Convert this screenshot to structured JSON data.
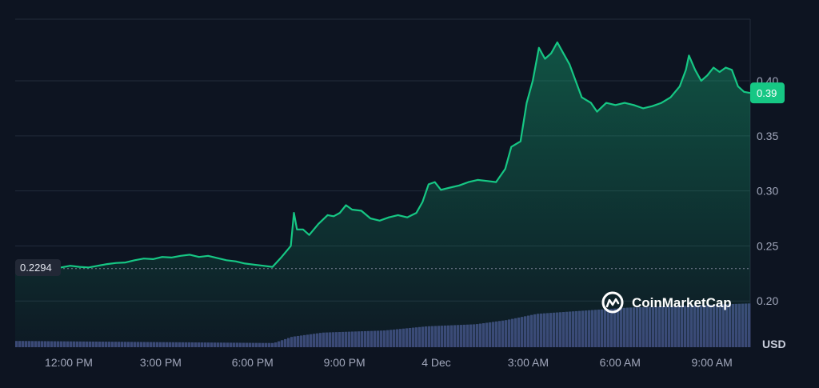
{
  "brand": {
    "watermark": "CoinMarketCap",
    "logo_icon": "coinmarketcap-logo-icon"
  },
  "colors": {
    "background": "#0d1421",
    "line": "#16c784",
    "badge": "#16c784",
    "volume": "#3c4576",
    "grid": "#222b3b"
  },
  "chart_data": {
    "type": "area",
    "unit_label": "USD",
    "y_ticks": [
      0.2,
      0.25,
      0.3,
      0.35,
      0.4
    ],
    "y_tick_labels": [
      "0.20",
      "0.25",
      "0.30",
      "0.35",
      "0.40"
    ],
    "ylim": [
      0.158,
      0.456
    ],
    "x_ticks": [
      {
        "t": 1.75,
        "label": "12:00 PM"
      },
      {
        "t": 4.75,
        "label": "3:00 PM"
      },
      {
        "t": 7.75,
        "label": "6:00 PM"
      },
      {
        "t": 10.75,
        "label": "9:00 PM"
      },
      {
        "t": 13.75,
        "label": "4 Dec"
      },
      {
        "t": 16.75,
        "label": "3:00 AM"
      },
      {
        "t": 19.75,
        "label": "6:00 AM"
      },
      {
        "t": 22.75,
        "label": "9:00 AM"
      }
    ],
    "xlim": [
      0,
      24
    ],
    "start_value": 0.2294,
    "start_label": "0.2294",
    "current_value": 0.389,
    "current_label": "0.39",
    "grid": true,
    "series": [
      {
        "values": [
          [
            0.0,
            0.229
          ],
          [
            0.3,
            0.2294
          ],
          [
            0.6,
            0.23
          ],
          [
            0.9,
            0.23
          ],
          [
            1.2,
            0.231
          ],
          [
            1.5,
            0.2305
          ],
          [
            1.8,
            0.232
          ],
          [
            2.1,
            0.231
          ],
          [
            2.4,
            0.2305
          ],
          [
            2.7,
            0.232
          ],
          [
            3.0,
            0.2335
          ],
          [
            3.3,
            0.2345
          ],
          [
            3.6,
            0.235
          ],
          [
            3.9,
            0.237
          ],
          [
            4.2,
            0.2385
          ],
          [
            4.5,
            0.238
          ],
          [
            4.8,
            0.24
          ],
          [
            5.1,
            0.2395
          ],
          [
            5.4,
            0.241
          ],
          [
            5.7,
            0.242
          ],
          [
            6.0,
            0.24
          ],
          [
            6.3,
            0.241
          ],
          [
            6.6,
            0.239
          ],
          [
            6.9,
            0.237
          ],
          [
            7.2,
            0.236
          ],
          [
            7.5,
            0.234
          ],
          [
            7.8,
            0.233
          ],
          [
            8.1,
            0.232
          ],
          [
            8.4,
            0.231
          ],
          [
            8.7,
            0.24
          ],
          [
            9.0,
            0.25
          ],
          [
            9.1,
            0.28
          ],
          [
            9.2,
            0.265
          ],
          [
            9.4,
            0.265
          ],
          [
            9.6,
            0.26
          ],
          [
            9.9,
            0.27
          ],
          [
            10.2,
            0.278
          ],
          [
            10.4,
            0.277
          ],
          [
            10.6,
            0.28
          ],
          [
            10.8,
            0.287
          ],
          [
            11.0,
            0.283
          ],
          [
            11.3,
            0.282
          ],
          [
            11.6,
            0.275
          ],
          [
            11.9,
            0.273
          ],
          [
            12.2,
            0.276
          ],
          [
            12.5,
            0.278
          ],
          [
            12.8,
            0.276
          ],
          [
            13.1,
            0.28
          ],
          [
            13.3,
            0.29
          ],
          [
            13.5,
            0.306
          ],
          [
            13.7,
            0.308
          ],
          [
            13.9,
            0.301
          ],
          [
            14.2,
            0.303
          ],
          [
            14.5,
            0.305
          ],
          [
            14.8,
            0.308
          ],
          [
            15.1,
            0.31
          ],
          [
            15.4,
            0.309
          ],
          [
            15.7,
            0.308
          ],
          [
            16.0,
            0.32
          ],
          [
            16.2,
            0.34
          ],
          [
            16.5,
            0.345
          ],
          [
            16.7,
            0.38
          ],
          [
            16.9,
            0.4
          ],
          [
            17.1,
            0.43
          ],
          [
            17.3,
            0.42
          ],
          [
            17.5,
            0.425
          ],
          [
            17.7,
            0.435
          ],
          [
            17.9,
            0.425
          ],
          [
            18.1,
            0.415
          ],
          [
            18.3,
            0.4
          ],
          [
            18.5,
            0.385
          ],
          [
            18.8,
            0.38
          ],
          [
            19.0,
            0.372
          ],
          [
            19.3,
            0.38
          ],
          [
            19.6,
            0.378
          ],
          [
            19.9,
            0.38
          ],
          [
            20.2,
            0.378
          ],
          [
            20.5,
            0.375
          ],
          [
            20.8,
            0.377
          ],
          [
            21.1,
            0.38
          ],
          [
            21.4,
            0.385
          ],
          [
            21.7,
            0.395
          ],
          [
            21.9,
            0.41
          ],
          [
            22.0,
            0.423
          ],
          [
            22.2,
            0.41
          ],
          [
            22.4,
            0.4
          ],
          [
            22.6,
            0.405
          ],
          [
            22.8,
            0.412
          ],
          [
            23.0,
            0.408
          ],
          [
            23.2,
            0.412
          ],
          [
            23.4,
            0.41
          ],
          [
            23.6,
            0.395
          ],
          [
            23.8,
            0.39
          ],
          [
            24.0,
            0.389
          ]
        ]
      }
    ],
    "volume": [
      [
        0,
        0.3
      ],
      [
        8.4,
        0.2
      ],
      [
        9.0,
        0.5
      ],
      [
        10.0,
        0.7
      ],
      [
        12.0,
        0.8
      ],
      [
        13.4,
        1.0
      ],
      [
        15.0,
        1.1
      ],
      [
        16.0,
        1.3
      ],
      [
        17.0,
        1.6
      ],
      [
        18.0,
        1.7
      ],
      [
        19.0,
        1.8
      ],
      [
        20.0,
        1.9
      ],
      [
        22.0,
        2.0
      ],
      [
        24.0,
        2.1
      ]
    ]
  }
}
